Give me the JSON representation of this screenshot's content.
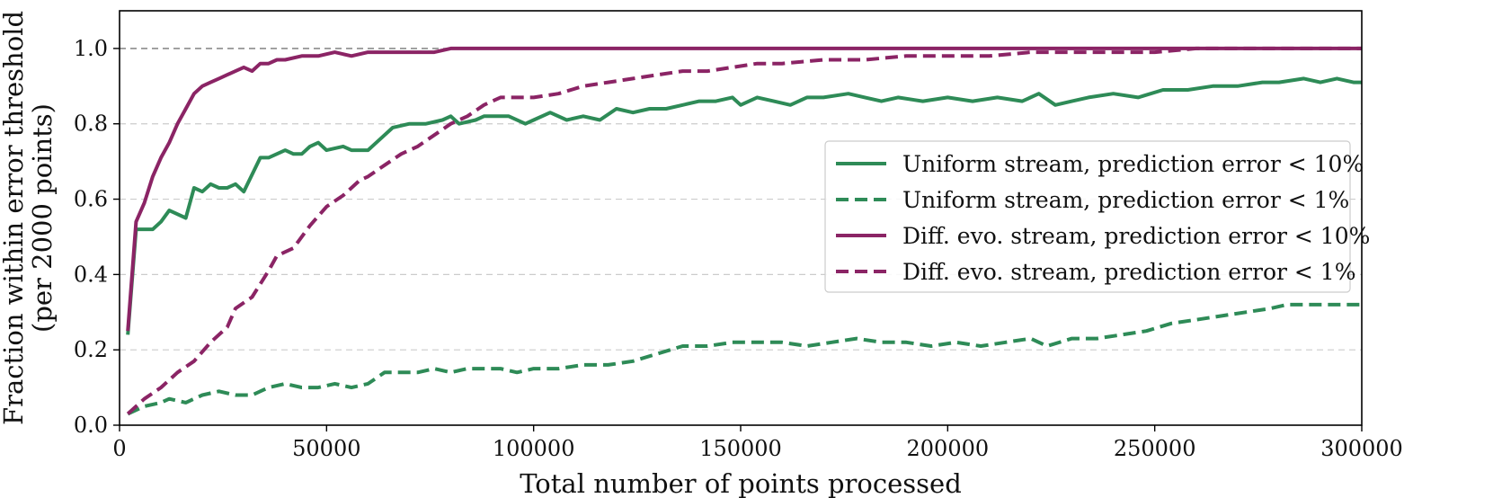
{
  "chart_data": {
    "type": "line",
    "title": "",
    "xlabel": "Total number of points processed",
    "ylabel_lines": [
      "Fraction within error threshold",
      "(per 2000 points)"
    ],
    "xlim": [
      0,
      300000
    ],
    "ylim": [
      0,
      1.1
    ],
    "xticks": [
      0,
      50000,
      100000,
      150000,
      200000,
      250000,
      300000
    ],
    "xtick_labels": [
      "0",
      "50000",
      "100000",
      "150000",
      "200000",
      "250000",
      "300000"
    ],
    "yticks": [
      0.0,
      0.2,
      0.4,
      0.6,
      0.8,
      1.0
    ],
    "ytick_labels": [
      "0.0",
      "0.2",
      "0.4",
      "0.6",
      "0.8",
      "1.0"
    ],
    "grid": "horizontal dashed",
    "reference_line": 1.0,
    "legend_position": "center-right",
    "colors": {
      "green": "#2e8b57",
      "purple": "#8b2465"
    },
    "series": [
      {
        "name": "Uniform stream, prediction error < 10%",
        "color": "#2e8b57",
        "style": "solid",
        "x": [
          2000,
          4000,
          8000,
          10000,
          12000,
          16000,
          18000,
          20000,
          22000,
          24000,
          26000,
          28000,
          30000,
          34000,
          36000,
          40000,
          42000,
          44000,
          46000,
          48000,
          50000,
          54000,
          56000,
          60000,
          62000,
          66000,
          70000,
          74000,
          78000,
          80000,
          82000,
          86000,
          88000,
          94000,
          98000,
          100000,
          104000,
          108000,
          112000,
          116000,
          120000,
          124000,
          128000,
          132000,
          136000,
          140000,
          144000,
          148000,
          150000,
          154000,
          158000,
          162000,
          166000,
          170000,
          176000,
          180000,
          184000,
          188000,
          194000,
          200000,
          206000,
          212000,
          218000,
          222000,
          226000,
          230000,
          234000,
          240000,
          246000,
          252000,
          258000,
          264000,
          270000,
          276000,
          280000,
          286000,
          290000,
          294000,
          298000,
          300000
        ],
        "values": [
          0.24,
          0.52,
          0.52,
          0.54,
          0.57,
          0.55,
          0.63,
          0.62,
          0.64,
          0.63,
          0.63,
          0.64,
          0.62,
          0.71,
          0.71,
          0.73,
          0.72,
          0.72,
          0.74,
          0.75,
          0.73,
          0.74,
          0.73,
          0.73,
          0.75,
          0.79,
          0.8,
          0.8,
          0.81,
          0.82,
          0.8,
          0.81,
          0.82,
          0.82,
          0.8,
          0.81,
          0.83,
          0.81,
          0.82,
          0.81,
          0.84,
          0.83,
          0.84,
          0.84,
          0.85,
          0.86,
          0.86,
          0.87,
          0.85,
          0.87,
          0.86,
          0.85,
          0.87,
          0.87,
          0.88,
          0.87,
          0.86,
          0.87,
          0.86,
          0.87,
          0.86,
          0.87,
          0.86,
          0.88,
          0.85,
          0.86,
          0.87,
          0.88,
          0.87,
          0.89,
          0.89,
          0.9,
          0.9,
          0.91,
          0.91,
          0.92,
          0.91,
          0.92,
          0.91,
          0.91
        ]
      },
      {
        "name": "Uniform stream, prediction error < 1%",
        "color": "#2e8b57",
        "style": "dashed",
        "x": [
          2000,
          6000,
          10000,
          12000,
          16000,
          20000,
          24000,
          28000,
          32000,
          36000,
          40000,
          44000,
          48000,
          52000,
          56000,
          60000,
          64000,
          68000,
          72000,
          76000,
          80000,
          84000,
          88000,
          92000,
          96000,
          100000,
          106000,
          112000,
          118000,
          124000,
          130000,
          136000,
          142000,
          148000,
          154000,
          160000,
          166000,
          172000,
          178000,
          184000,
          190000,
          196000,
          202000,
          208000,
          214000,
          220000,
          224000,
          230000,
          236000,
          242000,
          248000,
          254000,
          260000,
          266000,
          272000,
          278000,
          282000,
          288000,
          294000,
          300000
        ],
        "values": [
          0.03,
          0.05,
          0.06,
          0.07,
          0.06,
          0.08,
          0.09,
          0.08,
          0.08,
          0.1,
          0.11,
          0.1,
          0.1,
          0.11,
          0.1,
          0.11,
          0.14,
          0.14,
          0.14,
          0.15,
          0.14,
          0.15,
          0.15,
          0.15,
          0.14,
          0.15,
          0.15,
          0.16,
          0.16,
          0.17,
          0.19,
          0.21,
          0.21,
          0.22,
          0.22,
          0.22,
          0.21,
          0.22,
          0.23,
          0.22,
          0.22,
          0.21,
          0.22,
          0.21,
          0.22,
          0.23,
          0.21,
          0.23,
          0.23,
          0.24,
          0.25,
          0.27,
          0.28,
          0.29,
          0.3,
          0.31,
          0.32,
          0.32,
          0.32,
          0.32
        ]
      },
      {
        "name": "Diff. evo. stream, prediction error < 10%",
        "color": "#8b2465",
        "style": "solid",
        "x": [
          2000,
          4000,
          6000,
          8000,
          10000,
          12000,
          14000,
          16000,
          18000,
          20000,
          22000,
          24000,
          26000,
          28000,
          30000,
          32000,
          34000,
          36000,
          38000,
          40000,
          44000,
          48000,
          52000,
          56000,
          60000,
          66000,
          70000,
          76000,
          80000,
          90000,
          100000,
          110000,
          120000,
          140000,
          160000,
          180000,
          200000,
          240000,
          280000,
          300000
        ],
        "values": [
          0.25,
          0.54,
          0.59,
          0.66,
          0.71,
          0.75,
          0.8,
          0.84,
          0.88,
          0.9,
          0.91,
          0.92,
          0.93,
          0.94,
          0.95,
          0.94,
          0.96,
          0.96,
          0.97,
          0.97,
          0.98,
          0.98,
          0.99,
          0.98,
          0.99,
          0.99,
          0.99,
          0.99,
          1.0,
          1.0,
          1.0,
          1.0,
          1.0,
          1.0,
          1.0,
          1.0,
          1.0,
          1.0,
          1.0,
          1.0
        ]
      },
      {
        "name": "Diff. evo. stream, prediction error < 1%",
        "color": "#8b2465",
        "style": "dashed",
        "x": [
          2000,
          6000,
          10000,
          14000,
          18000,
          22000,
          26000,
          28000,
          32000,
          36000,
          38000,
          42000,
          46000,
          50000,
          54000,
          58000,
          60000,
          64000,
          68000,
          72000,
          76000,
          80000,
          84000,
          88000,
          92000,
          96000,
          100000,
          106000,
          112000,
          118000,
          124000,
          130000,
          136000,
          142000,
          148000,
          154000,
          160000,
          170000,
          180000,
          190000,
          200000,
          210000,
          220000,
          230000,
          240000,
          250000,
          260000,
          270000,
          280000,
          290000,
          300000
        ],
        "values": [
          0.03,
          0.07,
          0.1,
          0.14,
          0.17,
          0.22,
          0.26,
          0.31,
          0.34,
          0.41,
          0.45,
          0.47,
          0.53,
          0.58,
          0.61,
          0.65,
          0.66,
          0.69,
          0.72,
          0.74,
          0.77,
          0.8,
          0.82,
          0.85,
          0.87,
          0.87,
          0.87,
          0.88,
          0.9,
          0.91,
          0.92,
          0.93,
          0.94,
          0.94,
          0.95,
          0.96,
          0.96,
          0.97,
          0.97,
          0.98,
          0.98,
          0.98,
          0.99,
          0.99,
          0.99,
          0.99,
          1.0,
          1.0,
          1.0,
          1.0,
          1.0
        ]
      }
    ]
  }
}
